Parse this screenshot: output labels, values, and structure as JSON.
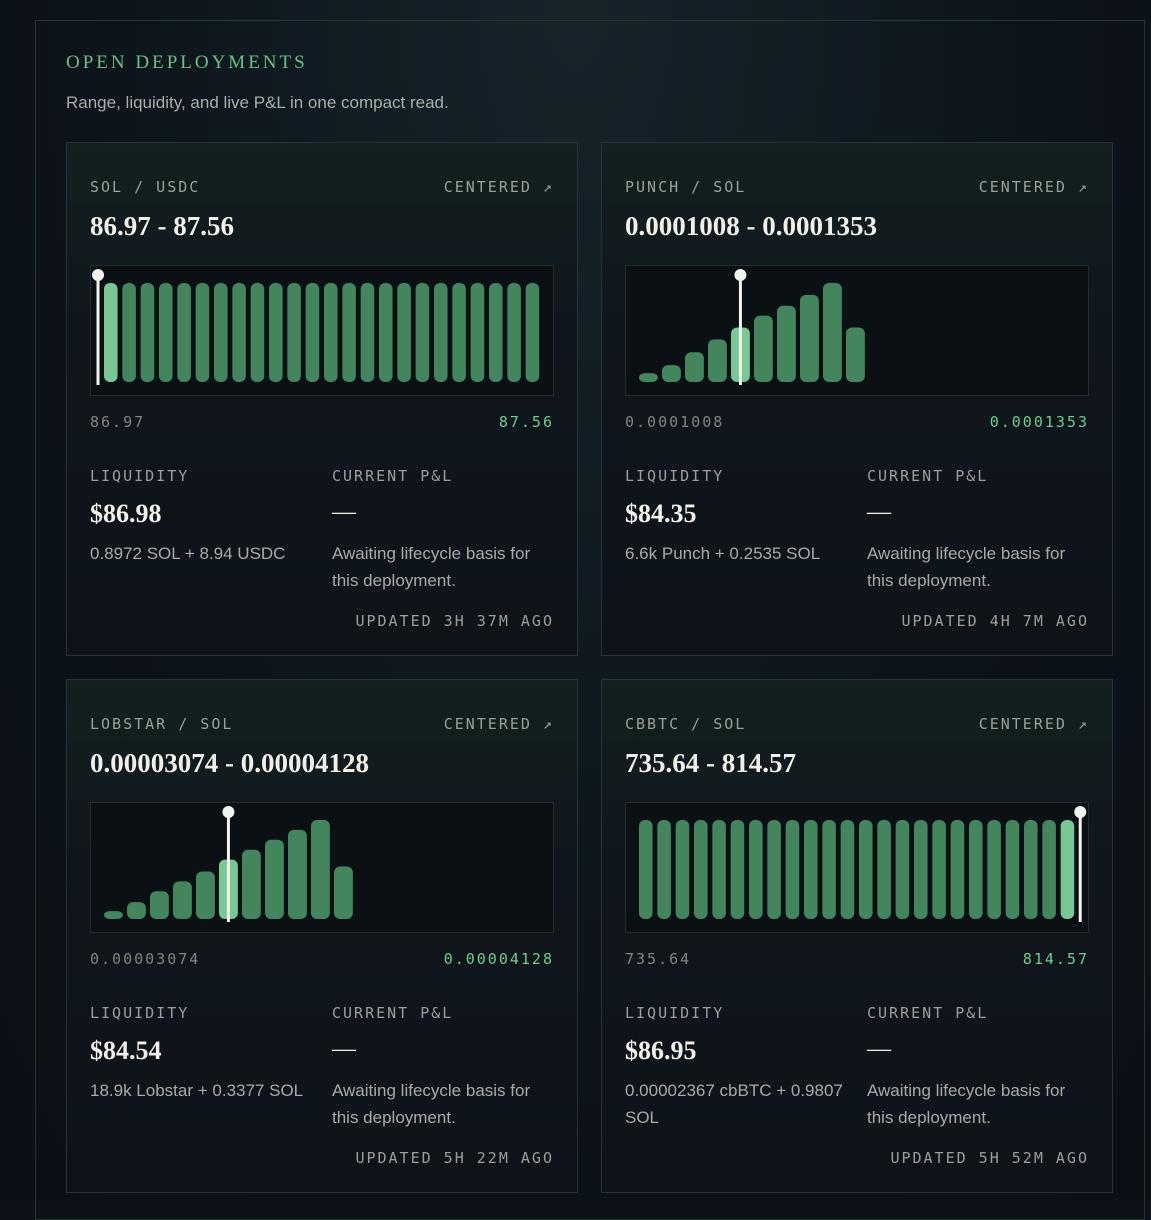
{
  "header": {
    "title": "OPEN DEPLOYMENTS",
    "subtitle": "Range, liquidity, and live P&L in one compact read."
  },
  "cards": [
    {
      "pair": "SOL / USDC",
      "status": "CENTERED ↗",
      "range": "86.97 - 87.56",
      "min": "86.97",
      "max": "87.56",
      "bars": [
        100,
        100,
        100,
        100,
        100,
        100,
        100,
        100,
        100,
        100,
        100,
        100,
        100,
        100,
        100,
        100,
        100,
        100,
        100,
        100,
        100,
        100,
        100,
        100
      ],
      "active": 0,
      "liquidity_label": "LIQUIDITY",
      "liquidity": "$86.98",
      "holdings": "0.8972 SOL + 8.94 USDC",
      "pnl_label": "CURRENT P&L",
      "pnl": "—",
      "pnl_note": "Awaiting lifecycle basis for this deployment.",
      "updated": "UPDATED 3H 37M AGO"
    },
    {
      "pair": "PUNCH / SOL",
      "status": "CENTERED ↗",
      "range": "0.0001008 - 0.0001353",
      "min": "0.0001008",
      "max": "0.0001353",
      "bars": [
        9,
        17,
        30,
        43,
        55,
        67,
        77,
        88,
        100,
        55
      ],
      "active": 4,
      "liquidity_label": "LIQUIDITY",
      "liquidity": "$84.35",
      "holdings": "6.6k Punch + 0.2535 SOL",
      "pnl_label": "CURRENT P&L",
      "pnl": "—",
      "pnl_note": "Awaiting lifecycle basis for this deployment.",
      "updated": "UPDATED 4H 7M AGO"
    },
    {
      "pair": "LOBSTAR / SOL",
      "status": "CENTERED ↗",
      "range": "0.00003074 - 0.00004128",
      "min": "0.00003074",
      "max": "0.00004128",
      "bars": [
        8,
        17,
        28,
        38,
        48,
        60,
        70,
        80,
        90,
        100,
        53
      ],
      "active": 5,
      "liquidity_label": "LIQUIDITY",
      "liquidity": "$84.54",
      "holdings": "18.9k Lobstar + 0.3377 SOL",
      "pnl_label": "CURRENT P&L",
      "pnl": "—",
      "pnl_note": "Awaiting lifecycle basis for this deployment.",
      "updated": "UPDATED 5H 22M AGO"
    },
    {
      "pair": "CBBTC / SOL",
      "status": "CENTERED ↗",
      "range": "735.64 - 814.57",
      "min": "735.64",
      "max": "814.57",
      "bars": [
        100,
        100,
        100,
        100,
        100,
        100,
        100,
        100,
        100,
        100,
        100,
        100,
        100,
        100,
        100,
        100,
        100,
        100,
        100,
        100,
        100,
        100,
        100,
        100
      ],
      "active": 23,
      "liquidity_label": "LIQUIDITY",
      "liquidity": "$86.95",
      "holdings": "0.00002367 cbBTC + 0.9807 SOL",
      "pnl_label": "CURRENT P&L",
      "pnl": "—",
      "pnl_note": "Awaiting lifecycle basis for this deployment.",
      "updated": "UPDATED 5H 52M AGO"
    }
  ]
}
